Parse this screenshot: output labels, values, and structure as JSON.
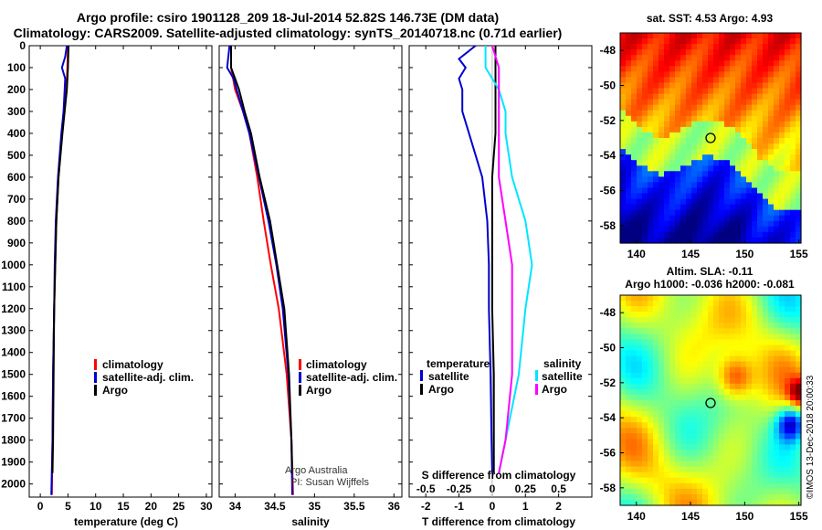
{
  "header": {
    "line1": "Argo profile: csiro 1901128_209 18-Jul-2014 52.82S 146.73E (DM data)",
    "line2": "Climatology: CARS2009. Satellite-adjusted climatology: synTS_20140718.nc (0.71d earlier)"
  },
  "colors": {
    "climatology": "#ff0000",
    "satellite": "#0000cc",
    "argo": "#000000",
    "sal_satellite": "#00e5ff",
    "sal_argo": "#ff00ff"
  },
  "depth_ticks": [
    "0",
    "100",
    "200",
    "300",
    "400",
    "500",
    "600",
    "700",
    "800",
    "900",
    "1000",
    "1100",
    "1200",
    "1300",
    "1400",
    "1500",
    "1600",
    "1700",
    "1800",
    "1900",
    "2000"
  ],
  "chart_data": [
    {
      "type": "line",
      "xlabel": "temperature (deg C)",
      "ylabel": "",
      "xlim": [
        -2,
        31
      ],
      "ylim": [
        2060,
        0
      ],
      "xticks": [
        "0",
        "5",
        "10",
        "15",
        "20",
        "25",
        "30"
      ],
      "legend": [
        "climatology",
        "satellite-adj. clim.",
        "Argo"
      ],
      "series": [
        {
          "name": "climatology",
          "depth": [
            0,
            100,
            200,
            300,
            400,
            600,
            800,
            1000,
            1200,
            1500,
            1800,
            2050
          ],
          "values": [
            5.0,
            4.9,
            4.7,
            4.3,
            3.9,
            3.3,
            2.9,
            2.7,
            2.5,
            2.3,
            2.2,
            2.1
          ]
        },
        {
          "name": "satellite-adj. clim.",
          "depth": [
            0,
            50,
            100,
            150,
            200,
            300,
            400,
            600,
            800,
            1000,
            1200,
            1500,
            1800,
            2050
          ],
          "values": [
            4.8,
            4.5,
            3.9,
            4.5,
            4.4,
            4.2,
            3.8,
            3.2,
            2.8,
            2.6,
            2.5,
            2.3,
            2.2,
            2.0
          ]
        },
        {
          "name": "Argo",
          "depth": [
            0,
            100,
            200,
            300,
            400,
            600,
            800,
            1000,
            1200,
            1500,
            1800,
            1950
          ],
          "values": [
            5.1,
            5.0,
            4.8,
            4.4,
            4.0,
            3.3,
            2.9,
            2.7,
            2.5,
            2.4,
            2.3,
            2.2
          ]
        }
      ]
    },
    {
      "type": "line",
      "xlabel": "salinity",
      "ylabel": "",
      "xlim": [
        33.8,
        36.1
      ],
      "ylim": [
        2060,
        0
      ],
      "xticks": [
        "34",
        "34.5",
        "35",
        "35.5",
        "36"
      ],
      "legend": [
        "climatology",
        "satellite-adj. clim.",
        "Argo"
      ],
      "annotations": [
        "Argo Australia",
        "PI: Susan Wijffels"
      ],
      "series": [
        {
          "name": "climatology",
          "depth": [
            0,
            100,
            200,
            300,
            400,
            600,
            800,
            1000,
            1200,
            1500,
            1800,
            2050
          ],
          "values": [
            33.95,
            33.95,
            34.0,
            34.1,
            34.18,
            34.28,
            34.36,
            34.45,
            34.55,
            34.65,
            34.71,
            34.73
          ]
        },
        {
          "name": "satellite-adj. clim.",
          "depth": [
            0,
            100,
            150,
            200,
            300,
            400,
            600,
            800,
            1000,
            1200,
            1500,
            1800,
            2050
          ],
          "values": [
            33.93,
            33.9,
            33.98,
            34.02,
            34.1,
            34.18,
            34.3,
            34.42,
            34.52,
            34.6,
            34.67,
            34.71,
            34.72
          ]
        },
        {
          "name": "Argo",
          "depth": [
            0,
            100,
            150,
            200,
            300,
            400,
            600,
            800,
            1000,
            1200,
            1500,
            1800,
            1950
          ],
          "values": [
            33.95,
            33.95,
            34.0,
            34.05,
            34.12,
            34.2,
            34.31,
            34.44,
            34.53,
            34.62,
            34.68,
            34.71,
            34.72
          ]
        }
      ]
    },
    {
      "type": "line",
      "xlabel": "T difference from climatology",
      "title": "S difference from climatology",
      "xlim": [
        -2.5,
        3.0
      ],
      "ylim": [
        2060,
        0
      ],
      "xticks": [
        "-2",
        "-1",
        "0",
        "1",
        "2"
      ],
      "s_ticks": [
        "-0.5",
        "-0.25",
        "0",
        "0.25",
        "0.5"
      ],
      "legend_temperature": {
        "heading": "temperature",
        "items": [
          "satellite",
          "Argo"
        ]
      },
      "legend_salinity": {
        "heading": "salinity",
        "items": [
          "satellite",
          "Argo"
        ]
      },
      "series": [
        {
          "name": "temperature satellite",
          "depth": [
            0,
            60,
            100,
            150,
            200,
            300,
            400,
            600,
            800,
            1000,
            1200,
            1500,
            1800,
            1950
          ],
          "values": [
            -0.5,
            -1.0,
            -0.8,
            -1.0,
            -0.9,
            -0.9,
            -0.7,
            -0.3,
            -0.15,
            -0.1,
            -0.1,
            -0.05,
            -0.02,
            0.0
          ]
        },
        {
          "name": "temperature Argo",
          "depth": [
            0,
            100,
            200,
            300,
            400,
            600,
            800,
            1000,
            1200,
            1500,
            1800,
            1950
          ],
          "values": [
            0.1,
            0.1,
            0.1,
            0.1,
            0.1,
            0.0,
            0.0,
            0.0,
            0.0,
            0.05,
            0.05,
            0.05
          ]
        },
        {
          "name": "salinity satellite",
          "depth": [
            0,
            100,
            200,
            300,
            400,
            600,
            800,
            1000,
            1200,
            1500,
            1800,
            1950
          ],
          "values": [
            -0.05,
            -0.05,
            0.05,
            0.1,
            0.1,
            0.15,
            0.25,
            0.3,
            0.25,
            0.2,
            0.1,
            0.05
          ]
        },
        {
          "name": "salinity Argo",
          "depth": [
            0,
            100,
            200,
            300,
            400,
            600,
            800,
            1000,
            1200,
            1500,
            1800,
            1950
          ],
          "values": [
            0.0,
            0.05,
            0.05,
            0.05,
            0.05,
            0.05,
            0.1,
            0.15,
            0.15,
            0.15,
            0.1,
            0.05
          ]
        }
      ]
    }
  ],
  "maps": {
    "sst": {
      "title": "sat. SST: 4.53 Argo: 4.93",
      "lat_ticks": [
        "-48",
        "-50",
        "-52",
        "-54",
        "-56",
        "-58"
      ],
      "lon_ticks": [
        "140",
        "145",
        "150",
        "155"
      ]
    },
    "sla": {
      "title1": "Altim. SLA: -0.11",
      "title2": "Argo h1000: -0.036 h2000: -0.081",
      "lat_ticks": [
        "-48",
        "-50",
        "-52",
        "-54",
        "-56",
        "-58"
      ],
      "lon_ticks": [
        "140",
        "145",
        "150",
        "155"
      ],
      "credit": "©IMOS 13-Dec-2018 20:00:33"
    }
  }
}
